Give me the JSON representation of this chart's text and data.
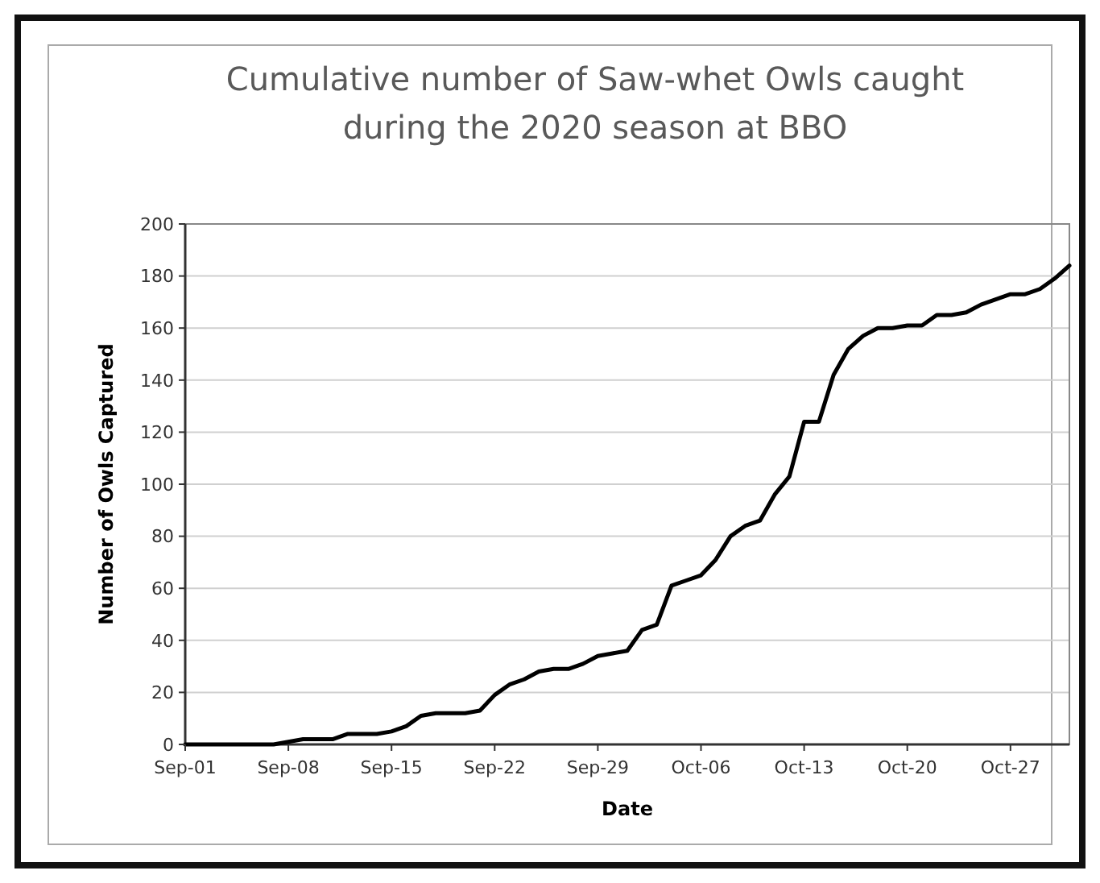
{
  "chart_data": {
    "type": "line",
    "title": "Cumulative number of Saw-whet Owls caught\nduring the 2020 season at BBO",
    "xlabel": "Date",
    "ylabel": "Number of Owls Captured",
    "x": [
      "2020-09-01",
      "2020-09-02",
      "2020-09-03",
      "2020-09-04",
      "2020-09-05",
      "2020-09-06",
      "2020-09-07",
      "2020-09-08",
      "2020-09-09",
      "2020-09-10",
      "2020-09-11",
      "2020-09-12",
      "2020-09-13",
      "2020-09-14",
      "2020-09-15",
      "2020-09-16",
      "2020-09-17",
      "2020-09-18",
      "2020-09-19",
      "2020-09-20",
      "2020-09-21",
      "2020-09-22",
      "2020-09-23",
      "2020-09-24",
      "2020-09-25",
      "2020-09-26",
      "2020-09-27",
      "2020-09-28",
      "2020-09-29",
      "2020-09-30",
      "2020-10-01",
      "2020-10-02",
      "2020-10-03",
      "2020-10-04",
      "2020-10-05",
      "2020-10-06",
      "2020-10-07",
      "2020-10-08",
      "2020-10-09",
      "2020-10-10",
      "2020-10-11",
      "2020-10-12",
      "2020-10-13",
      "2020-10-14",
      "2020-10-15",
      "2020-10-16",
      "2020-10-17",
      "2020-10-18",
      "2020-10-19",
      "2020-10-20",
      "2020-10-21",
      "2020-10-22",
      "2020-10-23",
      "2020-10-24",
      "2020-10-25",
      "2020-10-26",
      "2020-10-27",
      "2020-10-28",
      "2020-10-29",
      "2020-10-30",
      "2020-10-31"
    ],
    "series": [
      {
        "color": "#000000",
        "values": [
          0,
          0,
          0,
          0,
          0,
          0,
          0,
          1,
          2,
          2,
          2,
          4,
          4,
          4,
          5,
          7,
          11,
          12,
          12,
          12,
          13,
          19,
          23,
          25,
          28,
          29,
          29,
          31,
          34,
          35,
          36,
          44,
          46,
          61,
          63,
          65,
          71,
          80,
          84,
          86,
          96,
          103,
          124,
          124,
          142,
          152,
          157,
          160,
          160,
          161,
          161,
          165,
          165,
          166,
          169,
          171,
          173,
          173,
          175,
          179,
          184
        ]
      }
    ],
    "xlim": [
      "2020-09-01",
      "2020-10-31"
    ],
    "xticks": [
      {
        "value": "2020-09-01",
        "label": "Sep-01"
      },
      {
        "value": "2020-09-08",
        "label": "Sep-08"
      },
      {
        "value": "2020-09-15",
        "label": "Sep-15"
      },
      {
        "value": "2020-09-22",
        "label": "Sep-22"
      },
      {
        "value": "2020-09-29",
        "label": "Sep-29"
      },
      {
        "value": "2020-10-06",
        "label": "Oct-06"
      },
      {
        "value": "2020-10-13",
        "label": "Oct-13"
      },
      {
        "value": "2020-10-20",
        "label": "Oct-20"
      },
      {
        "value": "2020-10-27",
        "label": "Oct-27"
      }
    ],
    "ylim": [
      0,
      200
    ],
    "yticks": [
      0,
      20,
      40,
      60,
      80,
      100,
      120,
      140,
      160,
      180,
      200
    ],
    "grid": "y",
    "marker": "none",
    "line_style": "solid"
  }
}
